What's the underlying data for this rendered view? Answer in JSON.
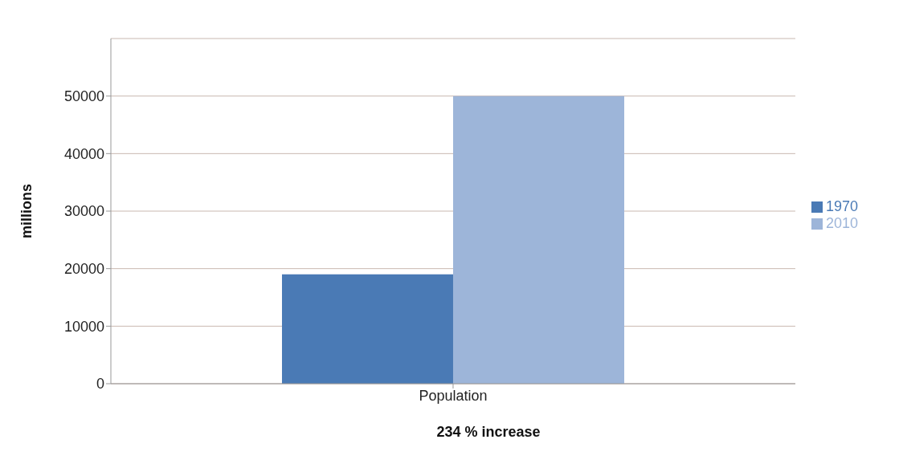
{
  "chart_data": {
    "type": "bar",
    "ylabel": "millions",
    "categories": [
      "Population"
    ],
    "series": [
      {
        "name": "1970",
        "color": "#4a7ab5",
        "values": [
          19000
        ]
      },
      {
        "name": "2010",
        "color": "#9db5d9",
        "values": [
          50000
        ]
      }
    ],
    "ylim": [
      0,
      60000
    ],
    "yticks": [
      0,
      10000,
      20000,
      30000,
      40000,
      50000
    ],
    "grid": "y",
    "legend": "right",
    "annotations": [
      "234 % increase"
    ]
  }
}
